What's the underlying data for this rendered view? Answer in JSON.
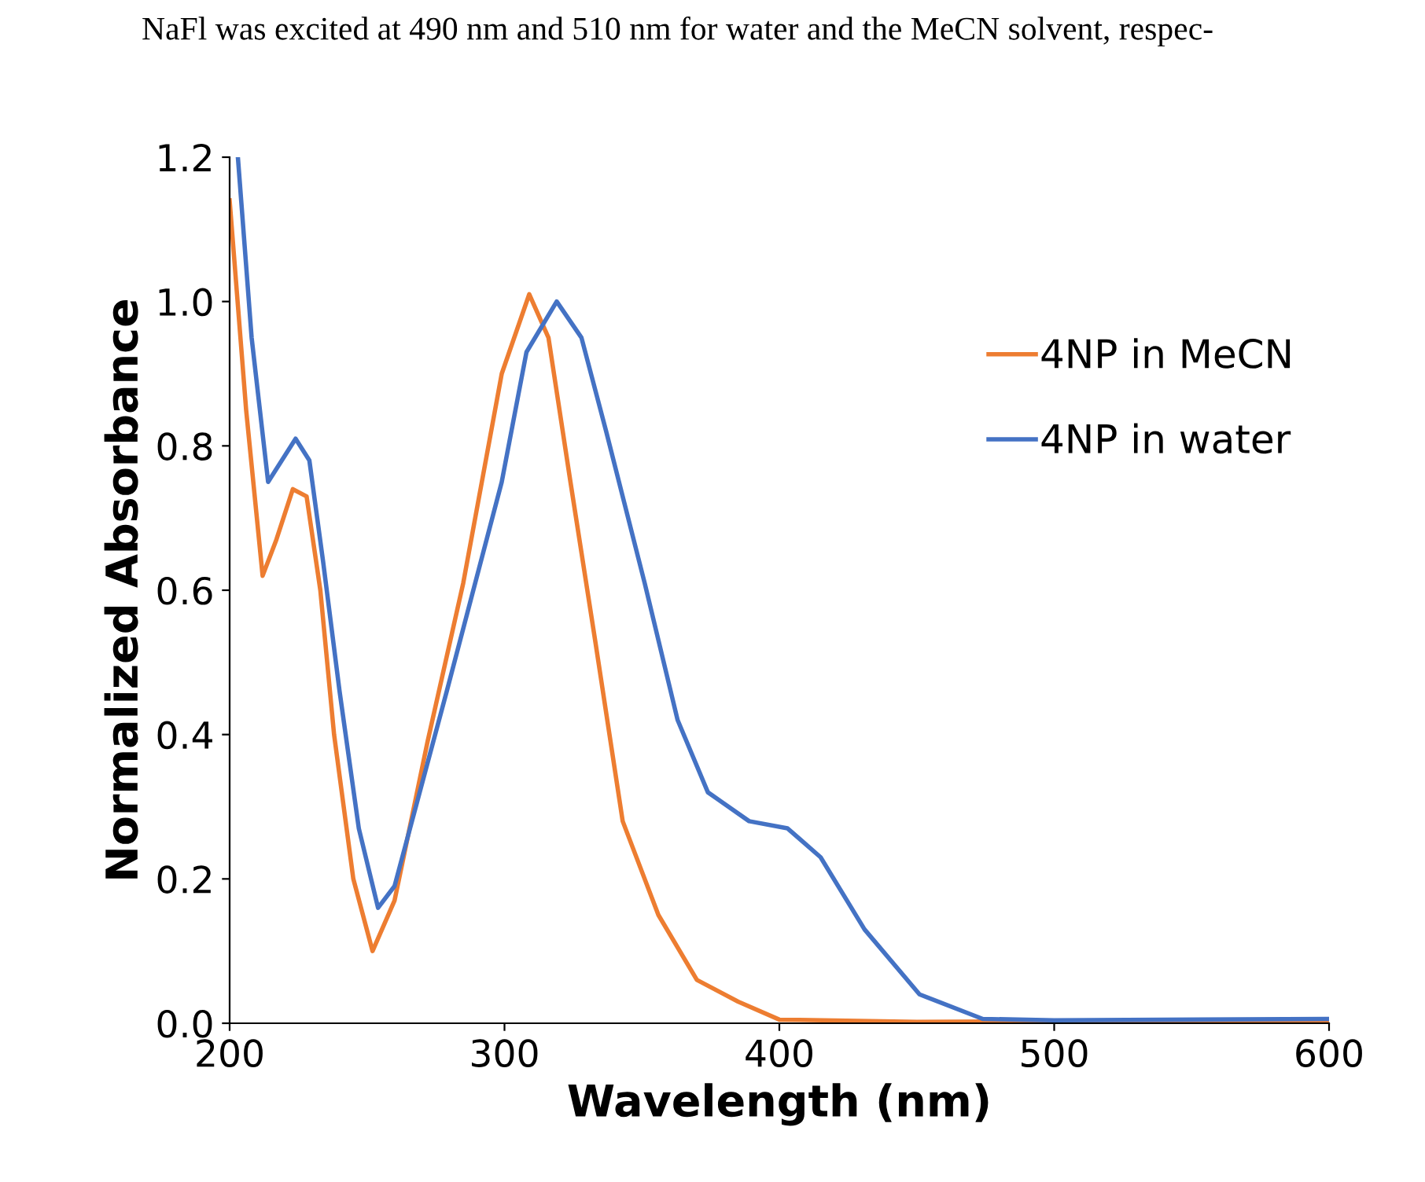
{
  "chart_data": {
    "type": "line",
    "xlabel": "Wavelength (nm)",
    "ylabel": "Normalized Absorbance",
    "annotations": [
      "NaFl was excited at 490 nm and 510 nm for water and the MeCN solvent, respec-"
    ],
    "xlim": [
      200,
      600
    ],
    "xticks": [
      200,
      300,
      400,
      500,
      600
    ],
    "ylim": [
      0,
      1.2
    ],
    "yticks": [
      {
        "value": 0,
        "label": "0.0"
      },
      {
        "value": 0.2,
        "label": "0.2"
      },
      {
        "value": 0.4,
        "label": "0.4"
      },
      {
        "value": 0.6,
        "label": "0.6"
      },
      {
        "value": 0.8,
        "label": "0.8"
      },
      {
        "value": 1.0,
        "label": "1.0"
      },
      {
        "value": 1.2,
        "label": "1.2"
      }
    ],
    "grid": false,
    "legend": "right",
    "marker": "none",
    "line_style": "solid",
    "series": [
      {
        "name": "4NP in MeCN",
        "color": "#ed7d31",
        "x": [
          200,
          206,
          212,
          217,
          223,
          228,
          233,
          238,
          245,
          252,
          260,
          272,
          285,
          299,
          309,
          316,
          324,
          333,
          343,
          356,
          370,
          385,
          400,
          450,
          600
        ],
        "values": [
          1.14,
          0.85,
          0.62,
          0.67,
          0.74,
          0.73,
          0.6,
          0.4,
          0.2,
          0.1,
          0.17,
          0.39,
          0.61,
          0.9,
          1.01,
          0.95,
          0.75,
          0.53,
          0.28,
          0.15,
          0.06,
          0.03,
          0.005,
          0.002,
          0.004
        ]
      },
      {
        "name": "4NP in water",
        "color": "#4472c4",
        "x": [
          203,
          208,
          214,
          219,
          224,
          229,
          234,
          240,
          247,
          254,
          260,
          279,
          299,
          308,
          319,
          328,
          337,
          351,
          363,
          374,
          389,
          403,
          415,
          431,
          451,
          474,
          500,
          600
        ],
        "values": [
          1.2,
          0.95,
          0.75,
          0.78,
          0.81,
          0.78,
          0.64,
          0.46,
          0.27,
          0.16,
          0.19,
          0.46,
          0.75,
          0.93,
          1.0,
          0.95,
          0.82,
          0.61,
          0.42,
          0.32,
          0.28,
          0.27,
          0.23,
          0.13,
          0.04,
          0.006,
          0.004,
          0.006
        ]
      }
    ]
  }
}
